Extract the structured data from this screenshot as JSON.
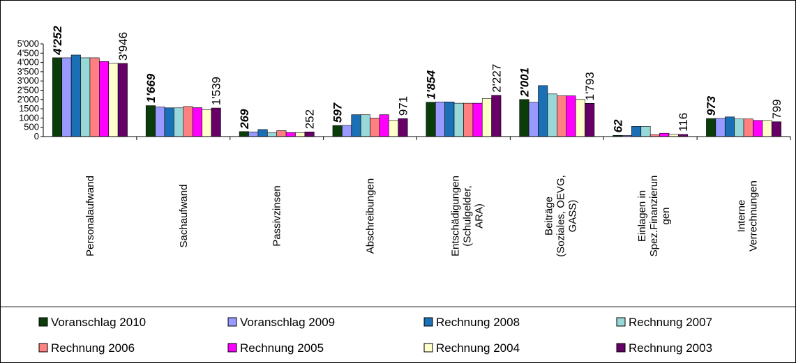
{
  "chart_data": {
    "type": "bar",
    "categories": [
      "Personalaufwand",
      "Sachaufwand",
      "Passivzinsen",
      "Abschreibungen",
      "Entschädigungen\n(Schulgelder,\nARA)",
      "Beiträge\n(Soziales, OEVG,\nGASS)",
      "Einlagen in\nSpez.Finanzierun\ngen",
      "Interne\nVerrechnungen"
    ],
    "series": [
      {
        "name": "Voranschlag 2010",
        "color": "#0b3d0b",
        "values": [
          4252,
          1669,
          269,
          597,
          1854,
          2001,
          62,
          973
        ],
        "value_labels": [
          "4'252",
          "1'669",
          "269",
          "597",
          "1'854",
          "2'001",
          "62",
          "973"
        ]
      },
      {
        "name": "Voranschlag 2009",
        "color": "#9999ff",
        "values": [
          4250,
          1600,
          250,
          600,
          1870,
          1850,
          60,
          980
        ]
      },
      {
        "name": "Rechnung 2008",
        "color": "#1a6fb5",
        "values": [
          4400,
          1550,
          380,
          1180,
          1870,
          2750,
          550,
          1060
        ]
      },
      {
        "name": "Rechnung 2007",
        "color": "#99d8d8",
        "values": [
          4250,
          1550,
          200,
          1180,
          1800,
          2300,
          550,
          950
        ]
      },
      {
        "name": "Rechnung 2006",
        "color": "#ff8080",
        "values": [
          4250,
          1620,
          320,
          1000,
          1800,
          2200,
          100,
          950
        ]
      },
      {
        "name": "Rechnung 2005",
        "color": "#ff00ff",
        "values": [
          4050,
          1560,
          220,
          1180,
          1800,
          2200,
          180,
          870
        ]
      },
      {
        "name": "Rechnung 2004",
        "color": "#ffffcc",
        "values": [
          3950,
          1450,
          200,
          870,
          2050,
          2000,
          120,
          870
        ]
      },
      {
        "name": "Rechnung 2003",
        "color": "#660066",
        "values": [
          3946,
          1539,
          252,
          971,
          2227,
          1793,
          116,
          799
        ],
        "value_labels": [
          "3'946",
          "1'539",
          "252",
          "971",
          "2'227",
          "1'793",
          "116",
          "799"
        ]
      }
    ],
    "ylim": [
      0,
      5000
    ],
    "yticks": [
      0,
      500,
      1000,
      1500,
      {
        "value": 2000,
        "label": "2'000"
      },
      {
        "value": 2500,
        "label": "2'500"
      },
      {
        "value": 3000,
        "label": "3'000"
      },
      {
        "value": 3500,
        "label": "3'500"
      },
      {
        "value": 4000,
        "label": "4'000"
      },
      {
        "value": 4500,
        "label": "4'500"
      },
      {
        "value": 5000,
        "label": "5'000"
      }
    ],
    "legend": "bottom"
  }
}
